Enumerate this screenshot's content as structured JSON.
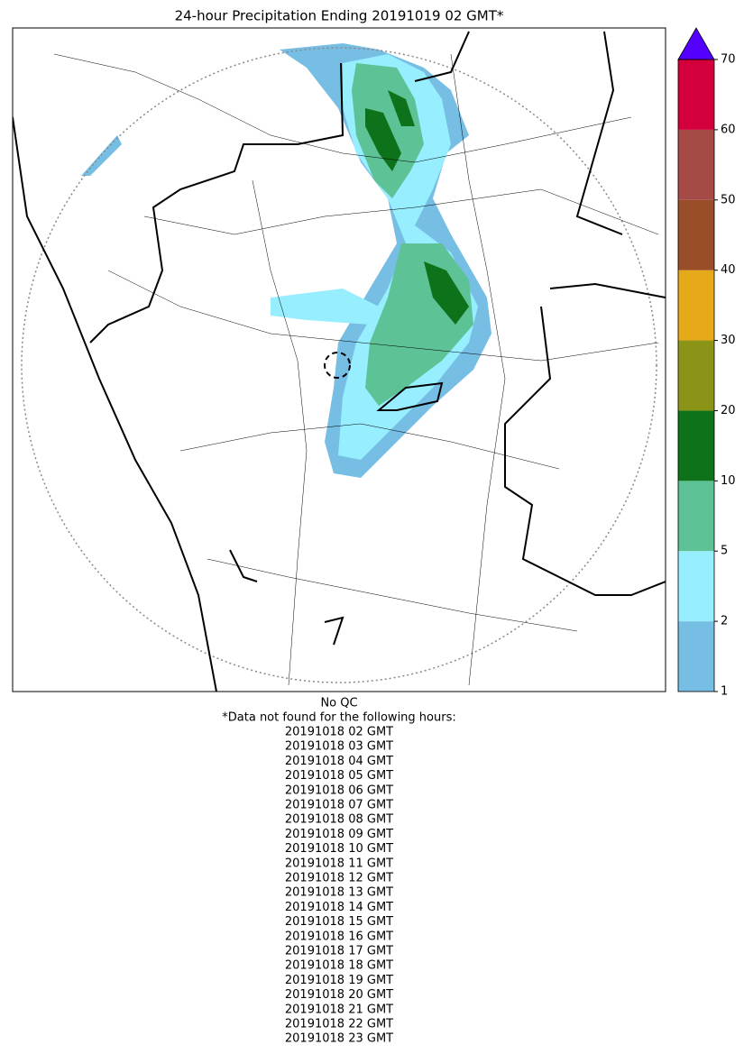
{
  "title": "24-hour Precipitation Ending 20191019 02 GMT*",
  "colorbar": {
    "ticks": [
      1,
      2,
      5,
      10,
      20,
      30,
      40,
      50,
      60,
      70
    ],
    "colors": [
      "#76bee3",
      "#96eefe",
      "#5dc295",
      "#0d7219",
      "#8c9418",
      "#e6a91a",
      "#9a4d29",
      "#a64a46",
      "#d4003d"
    ],
    "extend_color": "#5400ff"
  },
  "notes": {
    "qc": "No QC",
    "missing_header": "*Data not found for the following hours:",
    "missing_hours": [
      "20191018 02 GMT",
      "20191018 03 GMT",
      "20191018 04 GMT",
      "20191018 05 GMT",
      "20191018 06 GMT",
      "20191018 07 GMT",
      "20191018 08 GMT",
      "20191018 09 GMT",
      "20191018 10 GMT",
      "20191018 11 GMT",
      "20191018 12 GMT",
      "20191018 13 GMT",
      "20191018 14 GMT",
      "20191018 15 GMT",
      "20191018 16 GMT",
      "20191018 17 GMT",
      "20191018 18 GMT",
      "20191018 19 GMT",
      "20191018 20 GMT",
      "20191018 21 GMT",
      "20191018 22 GMT",
      "20191018 23 GMT"
    ]
  }
}
